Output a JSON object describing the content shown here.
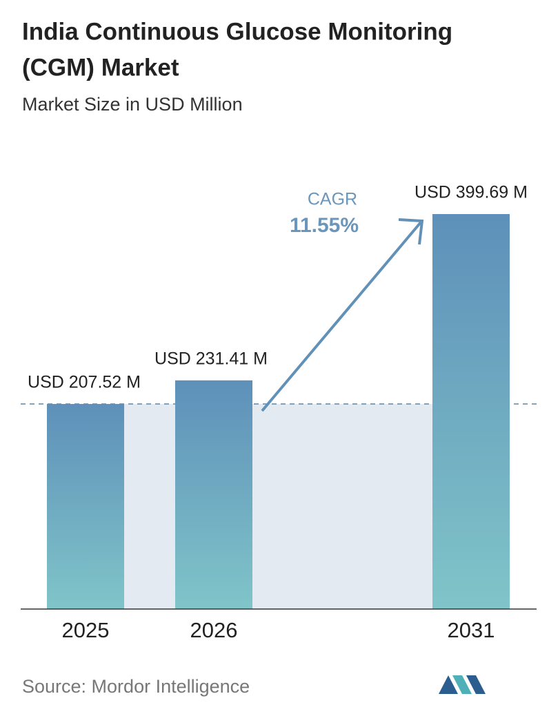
{
  "chart_data": {
    "type": "bar",
    "title": [
      "India Continuous Glucose Monitoring",
      "(CGM) Market"
    ],
    "subtitle": "Market Size in USD Million",
    "categories": [
      "2025",
      "2026",
      "2031"
    ],
    "values": [
      207.52,
      231.41,
      399.69
    ],
    "value_labels": [
      "USD 207.52 M",
      "USD 231.41 M",
      "USD 399.69 M"
    ],
    "gradient": [
      "#5e90b9",
      "#80c5c9"
    ],
    "annotation": {
      "label": "CAGR",
      "value": "11.55%"
    },
    "source": "Source:  Mordor Intelligence"
  }
}
